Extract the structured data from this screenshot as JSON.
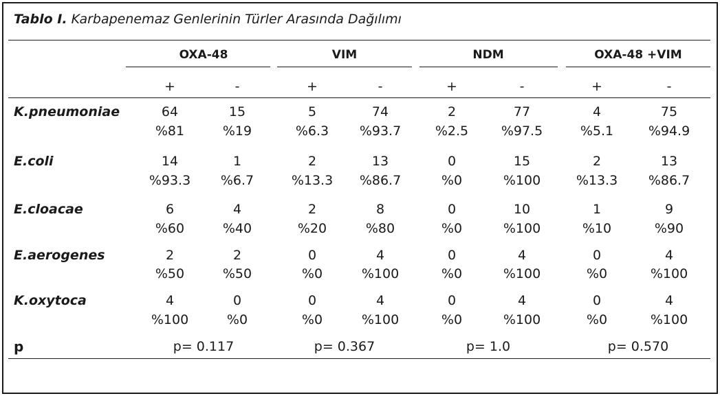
{
  "caption": {
    "label": "Tablo I.",
    "title": "Karbapenemaz Genlerinin Türler Arasında Dağılımı"
  },
  "groups": [
    "OXA-48",
    "VIM",
    "NDM",
    "OXA-48 +VIM"
  ],
  "signs": [
    "+",
    "-",
    "+",
    "-",
    "+",
    "-",
    "+",
    "-"
  ],
  "rows": [
    {
      "label": "K.pneumoniae",
      "counts": [
        "64",
        "15",
        "5",
        "74",
        "2",
        "77",
        "4",
        "75"
      ],
      "pcts": [
        "%81",
        "%19",
        "%6.3",
        "%93.7",
        "%2.5",
        "%97.5",
        "%5.1",
        "%94.9"
      ]
    },
    {
      "label": "E.coli",
      "counts": [
        "14",
        "1",
        "2",
        "13",
        "0",
        "15",
        "2",
        "13"
      ],
      "pcts": [
        "%93.3",
        "%6.7",
        "%13.3",
        "%86.7",
        "%0",
        "%100",
        "%13.3",
        "%86.7"
      ]
    },
    {
      "label": "E.cloacae",
      "counts": [
        "6",
        "4",
        "2",
        "8",
        "0",
        "10",
        "1",
        "9"
      ],
      "pcts": [
        "%60",
        "%40",
        "%20",
        "%80",
        "%0",
        "%100",
        "%10",
        "%90"
      ]
    },
    {
      "label": "E.aerogenes",
      "counts": [
        "2",
        "2",
        "0",
        "4",
        "0",
        "4",
        "0",
        "4"
      ],
      "pcts": [
        "%50",
        "%50",
        "%0",
        "%100",
        "%0",
        "%100",
        "%0",
        "%100"
      ]
    },
    {
      "label": "K.oxytoca",
      "counts": [
        "4",
        "0",
        "0",
        "4",
        "0",
        "4",
        "0",
        "4"
      ],
      "pcts": [
        "%100",
        "%0",
        "%0",
        "%100",
        "%0",
        "%100",
        "%0",
        "%100"
      ]
    }
  ],
  "p_row": {
    "label": "p",
    "values": [
      "p= 0.117",
      "p= 0.367",
      "p= 1.0",
      "p= 0.570"
    ]
  }
}
